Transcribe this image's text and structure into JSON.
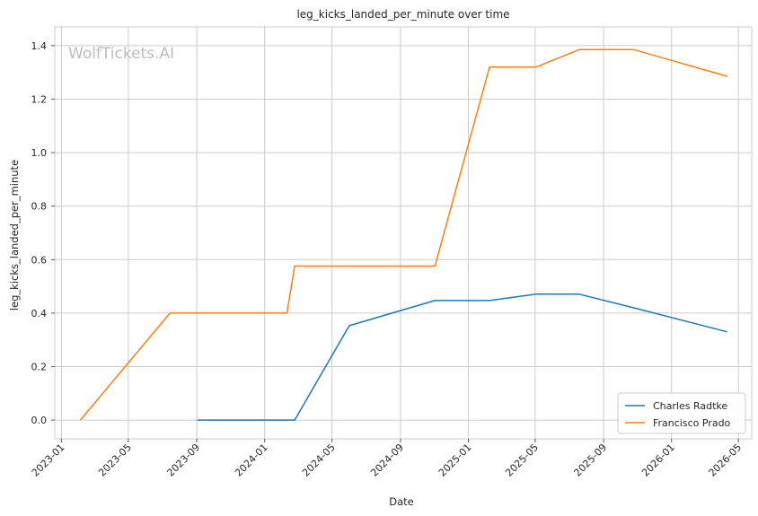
{
  "chart_data": {
    "type": "line",
    "title": "leg_kicks_landed_per_minute over time",
    "xlabel": "Date",
    "ylabel": "leg_kicks_landed_per_minute",
    "watermark": "WolfTickets.AI",
    "grid": true,
    "legend_position": "bottom-right",
    "xlim": [
      "2022-12-20",
      "2026-05-25"
    ],
    "ylim": [
      -0.07,
      1.47
    ],
    "x_ticks": [
      "2023-01",
      "2023-05",
      "2023-09",
      "2024-01",
      "2024-05",
      "2024-09",
      "2025-01",
      "2025-05",
      "2025-09",
      "2026-01",
      "2026-05"
    ],
    "y_ticks": [
      0.0,
      0.2,
      0.4,
      0.6,
      0.8,
      1.0,
      1.2,
      1.4
    ],
    "y_tick_labels": [
      "0.0",
      "0.2",
      "0.4",
      "0.6",
      "0.8",
      "1.0",
      "1.2",
      "1.4"
    ],
    "series": [
      {
        "name": "Charles Radtke",
        "color": "#1f77b4",
        "x": [
          "2023-09-02",
          "2024-02-24",
          "2024-06-01",
          "2024-11-02",
          "2025-02-08",
          "2025-05-03",
          "2025-07-19",
          "2025-10-25",
          "2026-04-11"
        ],
        "y": [
          0.0,
          0.0,
          0.353,
          0.447,
          0.447,
          0.471,
          0.471,
          0.42,
          0.33
        ]
      },
      {
        "name": "Francisco Prado",
        "color": "#ff7f0e",
        "x": [
          "2023-02-04",
          "2023-07-15",
          "2024-02-10",
          "2024-02-24",
          "2024-11-02",
          "2025-02-08",
          "2025-05-03",
          "2025-07-19",
          "2025-10-25",
          "2026-04-11"
        ],
        "y": [
          0.0,
          0.4,
          0.4,
          0.576,
          0.576,
          1.32,
          1.32,
          1.385,
          1.385,
          1.285
        ]
      }
    ]
  }
}
